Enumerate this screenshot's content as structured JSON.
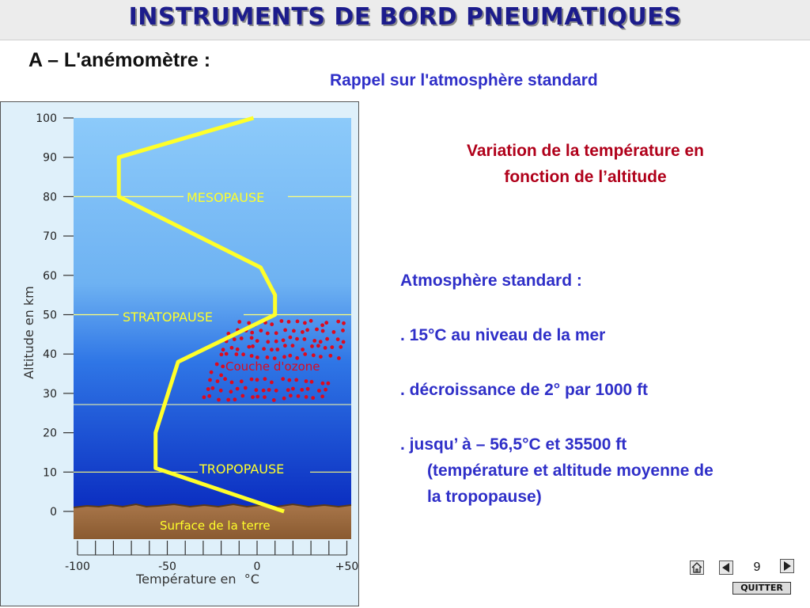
{
  "title": "INSTRUMENTS DE BORD PNEUMATIQUES",
  "section_title": "A – L'anémomètre :",
  "subtitle": "Rappel sur l'atmosphère standard",
  "diagram": {
    "caption_line1": "Variation de la température en",
    "caption_line2": "fonction de l’altitude",
    "ylabel": "Altitude en km",
    "xlabel": "Température en  °C",
    "y_ticks": [
      "100",
      "90",
      "80",
      "70",
      "60",
      "50",
      "40",
      "30",
      "20",
      "10",
      "0"
    ],
    "x_ticks": [
      "-100",
      "-50",
      "0",
      "+50"
    ],
    "labels": {
      "mesopause": "MESOPAUSE",
      "stratopause": "STRATOPAUSE",
      "tropopause": "TROPOPAUSE",
      "ozone": "Couche d'ozone",
      "surface": "Surface de la terre"
    },
    "profile": [
      {
        "temp": 15,
        "alt": 0
      },
      {
        "temp": -56.5,
        "alt": 11
      },
      {
        "temp": -56.5,
        "alt": 20
      },
      {
        "temp": -44,
        "alt": 38
      },
      {
        "temp": 10,
        "alt": 50
      },
      {
        "temp": 10,
        "alt": 55
      },
      {
        "temp": 2,
        "alt": 62
      },
      {
        "temp": -77,
        "alt": 80
      },
      {
        "temp": -77,
        "alt": 90
      },
      {
        "temp": -2,
        "alt": 100
      }
    ],
    "colors": {
      "curve": "#ffff2a",
      "ozone_dots": "#dd0a1e",
      "ground": "#9c6a3c",
      "sky_top": "#8cc8f7",
      "sky_bottom": "#0a2ec4"
    }
  },
  "info": {
    "heading": "Atmosphère standard :",
    "line1": ". 15°C au niveau de la mer",
    "line2": ". décroissance de 2° par 1000 ft",
    "line3": ". jusqu’ à – 56,5°C et 35500 ft",
    "line4": "(température et altitude moyenne  de",
    "line5": "la tropopause)"
  },
  "nav": {
    "page_number": "9",
    "home_icon": "home-icon",
    "prev_icon": "triangle-left-icon",
    "next_icon": "triangle-right-icon",
    "quit_label": "QUITTER"
  }
}
